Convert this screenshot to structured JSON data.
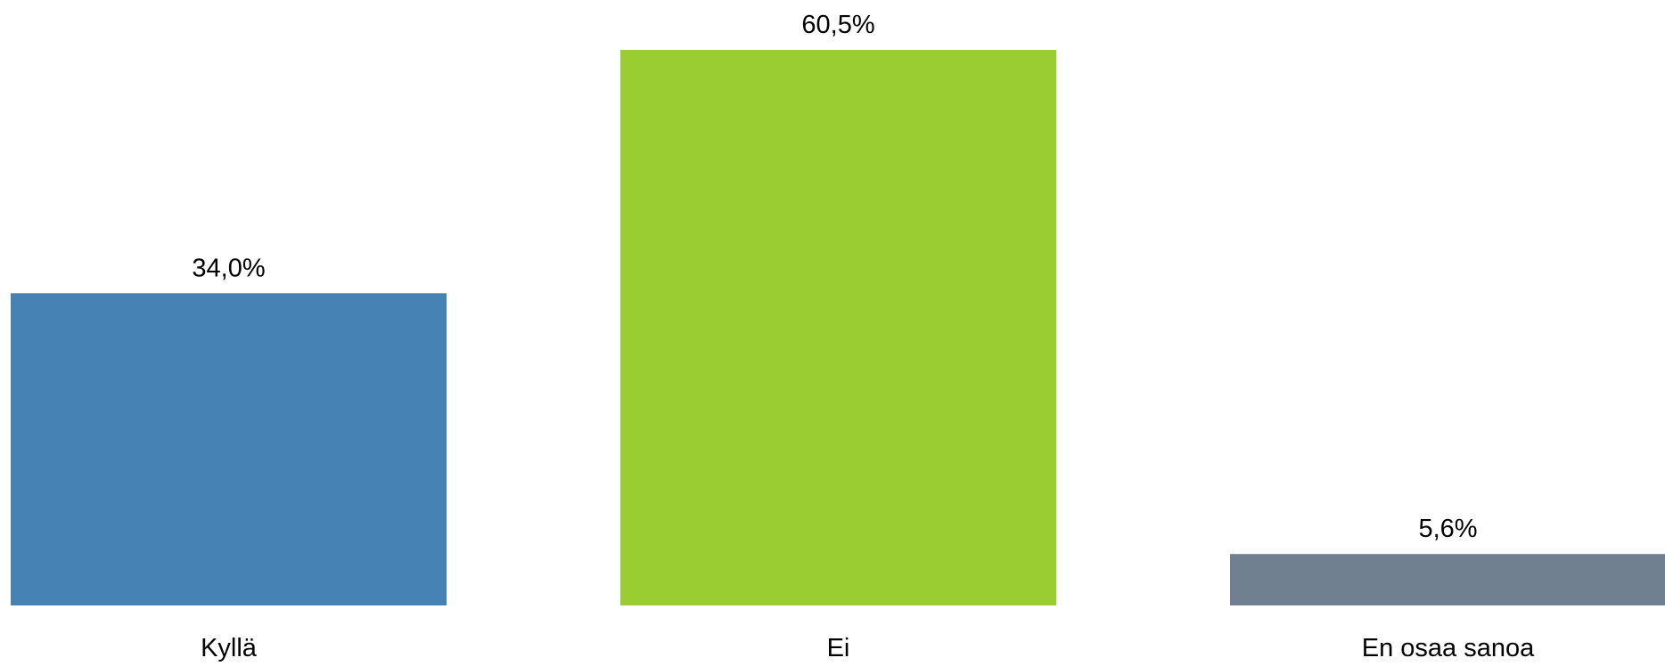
{
  "chart_data": {
    "type": "bar",
    "title": "",
    "xlabel": "",
    "ylabel": "",
    "categories": [
      "Kyllä",
      "Ei",
      "En osaa sanoa"
    ],
    "values": [
      34.0,
      60.5,
      5.6
    ],
    "value_labels": [
      "34,0%",
      "60,5%",
      "5,6%"
    ],
    "colors": [
      "#4682B4",
      "#9ACD32",
      "#708090"
    ],
    "ylim": [
      0,
      60.5
    ],
    "grid": false,
    "legend": "none"
  }
}
